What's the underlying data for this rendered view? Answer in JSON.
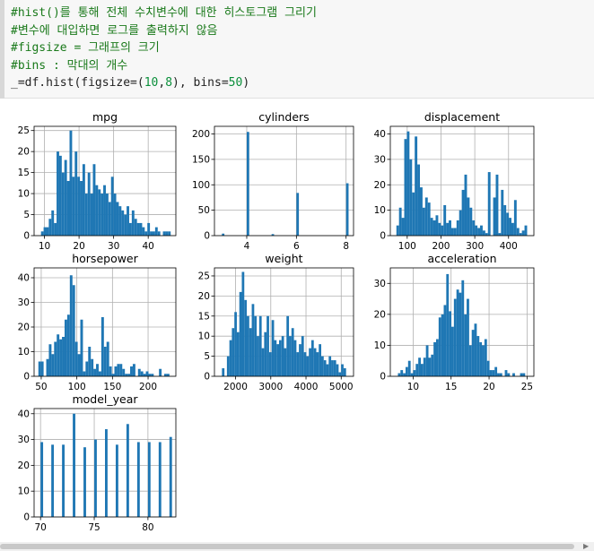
{
  "code": {
    "line1": "#hist()를 통해 전체 수치변수에 대한 히스토그램 그리기",
    "line2": "#변수에 대입하면 로그를 출력하지 않음",
    "line3": "#figsize = 그래프의 크기",
    "line4": "#bins : 막대의 개수",
    "line5_pre": "_=df.hist(figsize=(",
    "line5_n1": "10",
    "line5_comma": ",",
    "line5_n2": "8",
    "line5_mid": "), bins=",
    "line5_n3": "50",
    "line5_post": ")"
  },
  "colors": {
    "bar": "#1f77b4",
    "grid": "#b0b0b0",
    "axis": "#000000"
  },
  "chart_data": [
    {
      "type": "bar",
      "title": "mpg",
      "xlim": [
        7,
        48
      ],
      "ylim": [
        0,
        26
      ],
      "xticks": [
        10,
        20,
        30,
        40
      ],
      "yticks": [
        0,
        5,
        10,
        15,
        20,
        25
      ],
      "bin_start": 9,
      "bin_width": 0.75,
      "values": [
        1,
        2,
        2,
        4,
        6,
        3,
        20,
        19,
        15,
        18,
        13,
        25,
        14,
        20,
        14,
        13,
        17,
        10,
        15,
        10,
        17,
        12,
        11,
        10,
        12,
        10,
        8,
        14,
        10,
        8,
        7,
        6,
        5,
        7,
        3,
        6,
        4,
        3,
        3,
        2,
        1,
        3,
        1,
        1,
        2,
        1,
        0,
        1,
        1,
        1
      ]
    },
    {
      "type": "bar",
      "title": "cylinders",
      "xlim": [
        2.7,
        8.3
      ],
      "ylim": [
        0,
        215
      ],
      "xticks": [
        4,
        6,
        8
      ],
      "yticks": [
        0,
        50,
        100,
        150,
        200
      ],
      "bin_start": 3,
      "bin_width": 0.1,
      "bars": [
        {
          "x": 3,
          "v": 4
        },
        {
          "x": 4,
          "v": 204
        },
        {
          "x": 5,
          "v": 3
        },
        {
          "x": 6,
          "v": 84
        },
        {
          "x": 8,
          "v": 103
        }
      ]
    },
    {
      "type": "bar",
      "title": "displacement",
      "xlim": [
        50,
        475
      ],
      "ylim": [
        0,
        43
      ],
      "xticks": [
        100,
        200,
        300,
        400
      ],
      "yticks": [
        0,
        10,
        20,
        30,
        40
      ],
      "bin_start": 68,
      "bin_width": 7.74,
      "values": [
        4,
        11,
        7,
        38,
        41,
        30,
        17,
        39,
        28,
        19,
        11,
        15,
        13,
        7,
        6,
        8,
        5,
        4,
        12,
        5,
        6,
        3,
        3,
        6,
        10,
        18,
        24,
        15,
        11,
        6,
        4,
        3,
        4,
        2,
        1,
        25,
        0,
        15,
        24,
        1,
        18,
        12,
        9,
        7,
        5,
        14,
        3,
        1,
        2,
        4
      ]
    },
    {
      "type": "bar",
      "title": "horsepower",
      "xlim": [
        40,
        239
      ],
      "ylim": [
        0,
        44
      ],
      "xticks": [
        50,
        100,
        150,
        200
      ],
      "yticks": [
        0,
        10,
        20,
        30,
        40
      ],
      "bin_start": 46,
      "bin_width": 3.68,
      "values": [
        6,
        6,
        0,
        7,
        13,
        9,
        14,
        17,
        15,
        16,
        23,
        25,
        41,
        37,
        14,
        9,
        23,
        2,
        6,
        12,
        7,
        3,
        5,
        2,
        24,
        12,
        14,
        4,
        1,
        4,
        5,
        5,
        3,
        1,
        1,
        4,
        5,
        0,
        3,
        2,
        1,
        2,
        1,
        1,
        0,
        0,
        3,
        0,
        1,
        1
      ]
    },
    {
      "type": "bar",
      "title": "weight",
      "xlim": [
        1400,
        5350
      ],
      "ylim": [
        0,
        27
      ],
      "xticks": [
        2000,
        3000,
        4000,
        5000
      ],
      "yticks": [
        0,
        5,
        10,
        15,
        20,
        25
      ],
      "bin_start": 1613,
      "bin_width": 70.5,
      "values": [
        2,
        0,
        5,
        9,
        12,
        16,
        11,
        21,
        26,
        19,
        15,
        12,
        18,
        15,
        10,
        15,
        7,
        11,
        15,
        6,
        14,
        9,
        8,
        9,
        10,
        7,
        15,
        10,
        12,
        9,
        6,
        8,
        10,
        6,
        5,
        7,
        9,
        7,
        6,
        8,
        5,
        4,
        3,
        5,
        4,
        4,
        3,
        1,
        3,
        2
      ]
    },
    {
      "type": "bar",
      "title": "acceleration",
      "xlim": [
        7,
        25.9
      ],
      "ylim": [
        0,
        35
      ],
      "xticks": [
        10,
        15,
        20,
        25
      ],
      "yticks": [
        0,
        10,
        20,
        30
      ],
      "bin_start": 8,
      "bin_width": 0.335,
      "values": [
        1,
        2,
        1,
        3,
        5,
        1,
        2,
        4,
        6,
        4,
        6,
        10,
        6,
        7,
        11,
        12,
        19,
        20,
        23,
        33,
        21,
        16,
        25,
        28,
        27,
        31,
        20,
        25,
        10,
        15,
        17,
        13,
        11,
        10,
        12,
        5,
        2,
        2,
        3,
        1,
        1,
        0,
        2,
        1,
        0,
        1,
        0,
        0,
        1,
        1
      ]
    },
    {
      "type": "bar",
      "title": "model_year",
      "xlim": [
        69.4,
        82.6
      ],
      "ylim": [
        0,
        42
      ],
      "xticks": [
        70,
        75,
        80
      ],
      "yticks": [
        0,
        10,
        20,
        30,
        40
      ],
      "bin_start": 70,
      "bin_width": 0.24,
      "bars": [
        {
          "x": 70,
          "v": 29
        },
        {
          "x": 71,
          "v": 28
        },
        {
          "x": 72,
          "v": 28
        },
        {
          "x": 73,
          "v": 40
        },
        {
          "x": 74,
          "v": 27
        },
        {
          "x": 75,
          "v": 30
        },
        {
          "x": 76,
          "v": 34
        },
        {
          "x": 77,
          "v": 28
        },
        {
          "x": 78,
          "v": 36
        },
        {
          "x": 79,
          "v": 29
        },
        {
          "x": 80,
          "v": 29
        },
        {
          "x": 81,
          "v": 29
        },
        {
          "x": 82,
          "v": 31
        }
      ]
    }
  ]
}
